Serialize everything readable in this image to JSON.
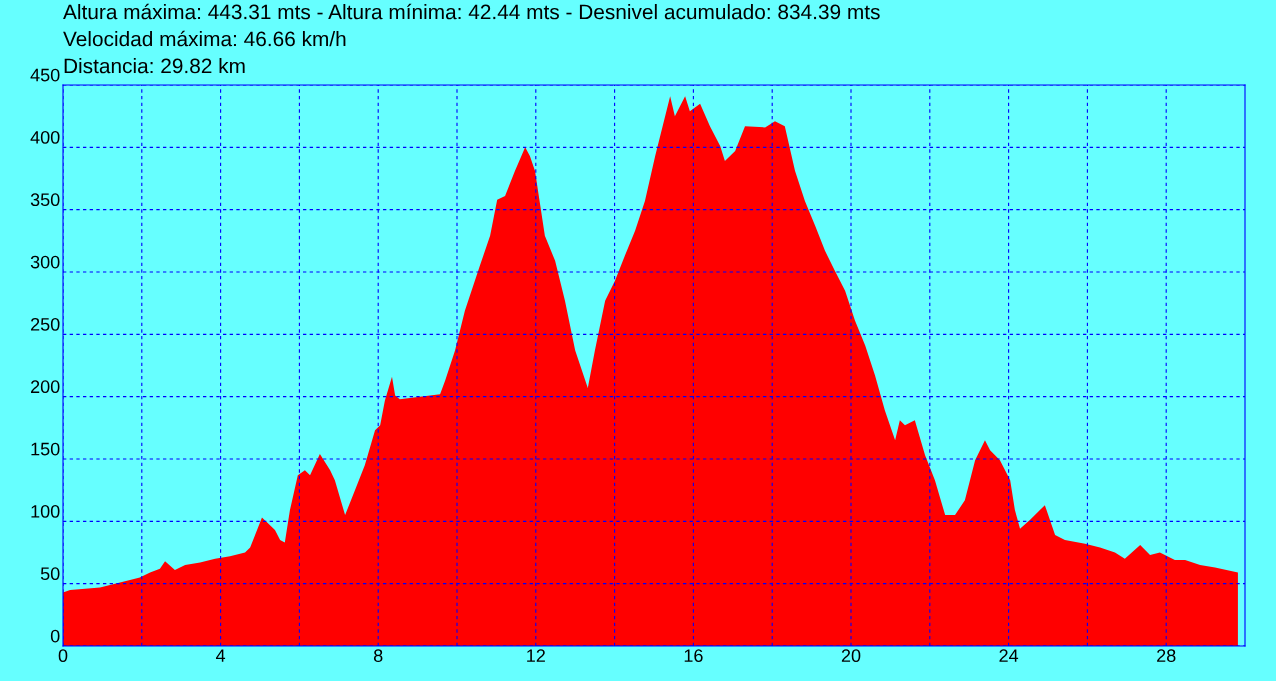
{
  "chart_data": {
    "type": "area",
    "title": "Altura máxima: 443.31 mts - Altura mínima: 42.44 mts - Desnivel acumulado: 834.39 mts",
    "subtitle": "Velocidad máxima: 46.66 km/h",
    "annotations": [
      "Distancia: 29.82 km"
    ],
    "x": [
      0,
      0.18,
      0.94,
      1.7,
      1.95,
      2.21,
      2.46,
      2.59,
      2.84,
      3.1,
      3.48,
      3.86,
      4.24,
      4.62,
      4.75,
      5.05,
      5.38,
      5.51,
      5.63,
      5.76,
      5.96,
      6.14,
      6.27,
      6.52,
      6.78,
      6.9,
      7.16,
      7.41,
      7.66,
      7.92,
      8.05,
      8.17,
      8.35,
      8.43,
      8.55,
      9.06,
      9.57,
      9.7,
      9.95,
      10.2,
      10.58,
      10.84,
      11.02,
      11.22,
      11.47,
      11.73,
      11.85,
      11.98,
      12.23,
      12.49,
      12.74,
      13.0,
      13.32,
      13.5,
      13.76,
      14.01,
      14.26,
      14.52,
      14.77,
      15.03,
      15.41,
      15.53,
      15.79,
      15.91,
      16.17,
      16.42,
      16.68,
      16.8,
      17.06,
      17.31,
      17.82,
      18.07,
      18.32,
      18.58,
      18.83,
      19.09,
      19.34,
      19.59,
      19.85,
      20.1,
      20.36,
      20.61,
      20.86,
      21.12,
      21.24,
      21.37,
      21.62,
      21.88,
      22.13,
      22.39,
      22.64,
      22.89,
      23.15,
      23.4,
      23.53,
      23.78,
      24.04,
      24.16,
      24.29,
      24.54,
      24.92,
      25.18,
      25.43,
      25.94,
      26.32,
      26.7,
      26.95,
      27.34,
      27.59,
      27.84,
      28.22,
      28.48,
      28.86,
      29.24,
      29.82
    ],
    "series": [
      {
        "color": "#ff0000",
        "values": [
          43,
          45,
          47,
          53,
          55,
          59,
          62,
          68,
          61,
          65,
          67,
          70,
          72,
          75,
          79,
          103,
          93,
          85,
          83,
          109,
          137,
          141,
          137,
          154,
          141,
          133,
          105,
          125,
          145,
          173,
          177,
          197,
          216,
          201,
          198,
          200,
          202,
          213,
          237,
          269,
          305,
          329,
          358,
          361,
          381,
          400,
          393,
          381,
          329,
          309,
          277,
          237,
          207,
          237,
          277,
          293,
          313,
          333,
          357,
          393,
          441,
          425,
          441,
          429,
          435,
          417,
          401,
          389,
          397,
          417,
          416,
          421,
          417,
          381,
          357,
          337,
          317,
          301,
          285,
          261,
          241,
          217,
          189,
          165,
          181,
          177,
          181,
          153,
          133,
          105,
          105,
          117,
          149,
          165,
          157,
          149,
          133,
          109,
          94,
          101,
          113,
          89,
          85,
          82,
          79,
          75,
          70,
          81,
          73,
          75,
          69,
          69,
          65,
          63,
          59
        ]
      }
    ],
    "xlim": [
      0,
      30
    ],
    "xticks": [
      0,
      {
        "value": 2,
        "label": null
      },
      4,
      {
        "value": 6,
        "label": null
      },
      8,
      {
        "value": 10,
        "label": null
      },
      12,
      {
        "value": 14,
        "label": null
      },
      16,
      {
        "value": 18,
        "label": null
      },
      20,
      {
        "value": 22,
        "label": null
      },
      24,
      {
        "value": 26,
        "label": null
      },
      28
    ],
    "ylim": [
      0,
      450
    ],
    "yticks": [
      0,
      50,
      100,
      150,
      200,
      250,
      300,
      350,
      400,
      450
    ],
    "grid": true,
    "line_style": "dashed"
  }
}
